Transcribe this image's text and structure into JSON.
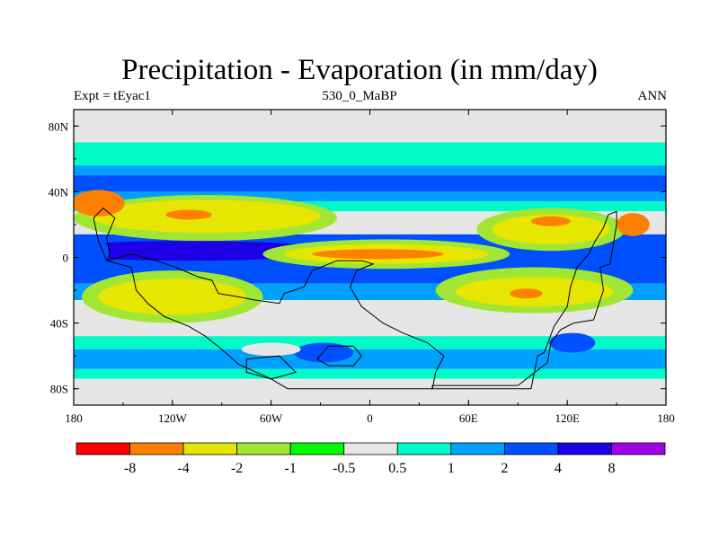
{
  "chart_data": {
    "type": "heatmap",
    "title": "Precipitation - Evaporation (in mm/day)",
    "left_string": "Expt = tEyac1",
    "center_string": "530_0_MaBP",
    "right_string": "ANN",
    "x_axis": {
      "range": [
        -180,
        180
      ],
      "ticks": [
        {
          "value": -180,
          "label": "180"
        },
        {
          "value": -120,
          "label": "120W"
        },
        {
          "value": -60,
          "label": "60W"
        },
        {
          "value": 0,
          "label": "0"
        },
        {
          "value": 60,
          "label": "60E"
        },
        {
          "value": 120,
          "label": "120E"
        },
        {
          "value": 180,
          "label": "180"
        }
      ]
    },
    "y_axis": {
      "range": [
        -90,
        90
      ],
      "ticks": [
        {
          "value": 80,
          "label": "80N"
        },
        {
          "value": 40,
          "label": "40N"
        },
        {
          "value": 0,
          "label": "0"
        },
        {
          "value": -40,
          "label": "40S"
        },
        {
          "value": -80,
          "label": "80S"
        }
      ]
    },
    "colorbar": {
      "colors": [
        "#ff0000",
        "#ff8000",
        "#e6e600",
        "#a0e632",
        "#00fa00",
        "#e6e6e6",
        "#00fac8",
        "#00a0ff",
        "#0050ff",
        "#1e00e6",
        "#a000e6"
      ],
      "labels": [
        "-8",
        "-4",
        "-2",
        "-1",
        "-0.5",
        "0.5",
        "1",
        "2",
        "4",
        "8"
      ]
    },
    "zonal_bands": [
      {
        "lat_min": 70,
        "lat_max": 90,
        "color": "#e6e6e6"
      },
      {
        "lat_min": 56,
        "lat_max": 70,
        "color": "#00fac8"
      },
      {
        "lat_min": 50,
        "lat_max": 56,
        "color": "#00a0ff"
      },
      {
        "lat_min": 40,
        "lat_max": 50,
        "color": "#0050ff"
      },
      {
        "lat_min": 34,
        "lat_max": 40,
        "color": "#00a0ff"
      },
      {
        "lat_min": 28,
        "lat_max": 34,
        "color": "#00fac8"
      },
      {
        "lat_min": 24,
        "lat_max": 28,
        "color": "#e6e6e6"
      },
      {
        "lat_min": 14,
        "lat_max": 24,
        "color": "#e6e6e6"
      },
      {
        "lat_min": -16,
        "lat_max": 14,
        "color": "#0050ff"
      },
      {
        "lat_min": -26,
        "lat_max": -16,
        "color": "#00a0ff"
      },
      {
        "lat_min": -48,
        "lat_max": -26,
        "color": "#e6e6e6"
      },
      {
        "lat_min": -56,
        "lat_max": -48,
        "color": "#00fac8"
      },
      {
        "lat_min": -68,
        "lat_max": -56,
        "color": "#00a0ff"
      },
      {
        "lat_min": -74,
        "lat_max": -68,
        "color": "#00fac8"
      },
      {
        "lat_min": -90,
        "lat_max": -74,
        "color": "#e6e6e6"
      }
    ],
    "field_patches": [
      {
        "name": "north-pacific-dry",
        "lon": -100,
        "lat": 24,
        "rlon": 80,
        "rlat": 14,
        "color": "#a0e632"
      },
      {
        "name": "north-pacific-dry-core",
        "lon": -100,
        "lat": 25,
        "rlon": 70,
        "rlat": 10,
        "color": "#e6e600"
      },
      {
        "name": "north-pacific-dry-max",
        "lon": -110,
        "lat": 26,
        "rlon": 14,
        "rlat": 3,
        "color": "#ff8000"
      },
      {
        "name": "nw-dry-edge",
        "lon": -165,
        "lat": 33,
        "rlon": 16,
        "rlat": 8,
        "color": "#ff8000"
      },
      {
        "name": "tropical-wet-band",
        "lon": -110,
        "lat": 4,
        "rlon": 90,
        "rlat": 6,
        "color": "#1e00e6"
      },
      {
        "name": "equatorial-dry-tongue",
        "lon": 10,
        "lat": 2,
        "rlon": 75,
        "rlat": 9,
        "color": "#a0e632"
      },
      {
        "name": "equatorial-dry-core",
        "lon": 10,
        "lat": 2,
        "rlon": 62,
        "rlat": 6,
        "color": "#e6e600"
      },
      {
        "name": "equatorial-dry-max",
        "lon": 5,
        "lat": 2,
        "rlon": 40,
        "rlat": 3,
        "color": "#ff8000"
      },
      {
        "name": "north-subtropic-east-dry",
        "lon": 110,
        "lat": 17,
        "rlon": 45,
        "rlat": 13,
        "color": "#a0e632"
      },
      {
        "name": "north-subtropic-east-core",
        "lon": 110,
        "lat": 17,
        "rlon": 36,
        "rlat": 9,
        "color": "#e6e600"
      },
      {
        "name": "north-subtropic-east-max",
        "lon": 110,
        "lat": 22,
        "rlon": 12,
        "rlat": 3,
        "color": "#ff8000"
      },
      {
        "name": "east-dry-max",
        "lon": 160,
        "lat": 20,
        "rlon": 10,
        "rlat": 7,
        "color": "#ff8000"
      },
      {
        "name": "south-subtropic-west-dry",
        "lon": -120,
        "lat": -24,
        "rlon": 55,
        "rlat": 16,
        "color": "#a0e632"
      },
      {
        "name": "south-subtropic-west-core",
        "lon": -120,
        "lat": -24,
        "rlon": 45,
        "rlat": 11,
        "color": "#e6e600"
      },
      {
        "name": "south-subtropic-east-dry",
        "lon": 100,
        "lat": -20,
        "rlon": 60,
        "rlat": 14,
        "color": "#a0e632"
      },
      {
        "name": "south-subtropic-east-core",
        "lon": 100,
        "lat": -21,
        "rlon": 48,
        "rlat": 9,
        "color": "#e6e600"
      },
      {
        "name": "south-subtropic-east-max",
        "lon": 95,
        "lat": -22,
        "rlon": 10,
        "rlat": 3,
        "color": "#ff8000"
      },
      {
        "name": "west-wet-cell",
        "lon": -170,
        "lat": 2,
        "rlon": 12,
        "rlat": 10,
        "color": "#0050ff"
      },
      {
        "name": "southern-wet-cell-1",
        "lon": -28,
        "lat": -58,
        "rlon": 18,
        "rlat": 6,
        "color": "#0050ff"
      },
      {
        "name": "southern-wet-cell-2",
        "lon": 123,
        "lat": -52,
        "rlon": 14,
        "rlat": 6,
        "color": "#0050ff"
      },
      {
        "name": "southern-gray-gap",
        "lon": -60,
        "lat": -56,
        "rlon": 18,
        "rlat": 4,
        "color": "#e6e6e6"
      }
    ],
    "coastlines": [
      {
        "name": "main-continent",
        "points": [
          [
            -160,
            -2
          ],
          [
            -145,
            -6
          ],
          [
            -142,
            -20
          ],
          [
            -135,
            -28
          ],
          [
            -125,
            -36
          ],
          [
            -110,
            -42
          ],
          [
            -100,
            -48
          ],
          [
            -90,
            -56
          ],
          [
            -80,
            -65
          ],
          [
            -60,
            -74
          ],
          [
            -50,
            -80
          ],
          [
            -30,
            -80
          ],
          [
            0,
            -80
          ],
          [
            20,
            -80
          ],
          [
            38,
            -80
          ],
          [
            40,
            -70
          ],
          [
            45,
            -60
          ],
          [
            35,
            -52
          ],
          [
            20,
            -46
          ],
          [
            8,
            -40
          ],
          [
            -5,
            -30
          ],
          [
            -12,
            -18
          ],
          [
            -8,
            -8
          ],
          [
            2,
            -4
          ],
          [
            -5,
            -2
          ],
          [
            -20,
            -2
          ],
          [
            -35,
            -8
          ],
          [
            -40,
            -18
          ],
          [
            -52,
            -22
          ],
          [
            -55,
            -28
          ],
          [
            -70,
            -26
          ],
          [
            -80,
            -24
          ],
          [
            -92,
            -22
          ],
          [
            -96,
            -14
          ],
          [
            -104,
            -12
          ],
          [
            -118,
            -6
          ],
          [
            -130,
            -2
          ],
          [
            -145,
            2
          ],
          [
            -160,
            -2
          ]
        ]
      },
      {
        "name": "east-landmass",
        "points": [
          [
            150,
            28
          ],
          [
            145,
            26
          ],
          [
            142,
            18
          ],
          [
            137,
            10
          ],
          [
            133,
            2
          ],
          [
            126,
            -6
          ],
          [
            122,
            -18
          ],
          [
            120,
            -30
          ],
          [
            112,
            -42
          ],
          [
            106,
            -58
          ],
          [
            102,
            -60
          ],
          [
            98,
            -80
          ],
          [
            40,
            -80
          ],
          [
            38,
            -80
          ],
          [
            38,
            -78
          ],
          [
            90,
            -78
          ],
          [
            108,
            -64
          ],
          [
            110,
            -52
          ],
          [
            116,
            -44
          ],
          [
            124,
            -40
          ],
          [
            136,
            -38
          ],
          [
            142,
            -20
          ],
          [
            140,
            -6
          ],
          [
            146,
            -4
          ],
          [
            148,
            8
          ],
          [
            150,
            20
          ],
          [
            150,
            28
          ]
        ]
      },
      {
        "name": "western-island",
        "points": [
          [
            -160,
            -2
          ],
          [
            -165,
            10
          ],
          [
            -168,
            24
          ],
          [
            -162,
            30
          ],
          [
            -155,
            24
          ],
          [
            -160,
            12
          ],
          [
            -158,
            2
          ],
          [
            -160,
            -2
          ]
        ]
      },
      {
        "name": "southern-block-1",
        "points": [
          [
            -25,
            -54
          ],
          [
            -10,
            -54
          ],
          [
            -5,
            -60
          ],
          [
            -10,
            -66
          ],
          [
            -25,
            -66
          ],
          [
            -32,
            -62
          ],
          [
            -25,
            -54
          ]
        ]
      },
      {
        "name": "southern-block-2",
        "points": [
          [
            -75,
            -62
          ],
          [
            -55,
            -60
          ],
          [
            -45,
            -70
          ],
          [
            -60,
            -74
          ],
          [
            -75,
            -70
          ],
          [
            -75,
            -62
          ]
        ]
      }
    ]
  }
}
